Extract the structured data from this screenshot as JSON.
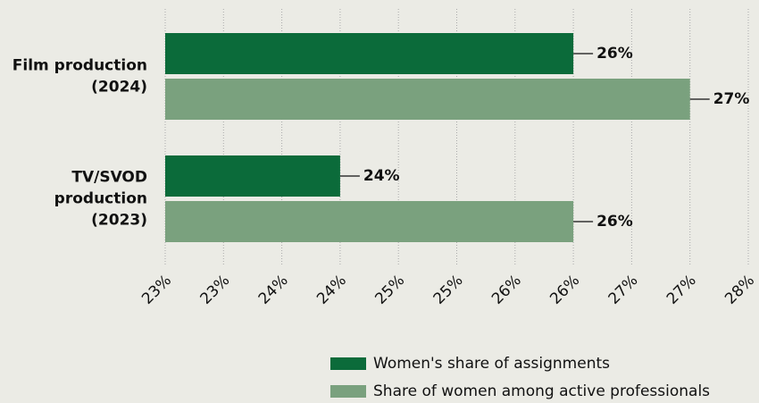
{
  "chart_data": {
    "type": "barh",
    "categories": [
      [
        "Film production",
        "(2024)"
      ],
      [
        "TV/SVOD",
        "production",
        "(2023)"
      ]
    ],
    "series": [
      {
        "name": "Women's share of assignments",
        "color": "#0b6b3a",
        "values": [
          26.3,
          24.3
        ],
        "value_labels": [
          "26%",
          "24%"
        ]
      },
      {
        "name": "Share of women among active professionals",
        "color": "#7aa17e",
        "values": [
          27.3,
          26.3
        ],
        "value_labels": [
          "27%",
          "26%"
        ]
      }
    ],
    "xlim": [
      22.8,
      27.8
    ],
    "xticks": [
      {
        "value": 22.8,
        "label": "23%"
      },
      {
        "value": 23.3,
        "label": "23%"
      },
      {
        "value": 23.8,
        "label": "24%"
      },
      {
        "value": 24.3,
        "label": "24%"
      },
      {
        "value": 24.8,
        "label": "25%"
      },
      {
        "value": 25.3,
        "label": "25%"
      },
      {
        "value": 25.8,
        "label": "26%"
      },
      {
        "value": 26.3,
        "label": "26%"
      },
      {
        "value": 26.8,
        "label": "27%"
      },
      {
        "value": 27.3,
        "label": "27%"
      },
      {
        "value": 27.8,
        "label": "28%"
      }
    ],
    "grid": true
  }
}
